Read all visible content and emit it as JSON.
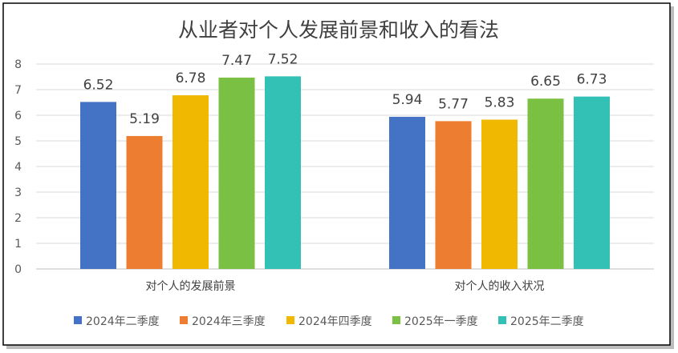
{
  "chart_data": {
    "type": "bar",
    "title": "从业者对个人发展前景和收入的看法",
    "categories": [
      "对个人的发展前景",
      "对个人的收入状况"
    ],
    "series": [
      {
        "name": "2024年二季度",
        "color": "#4472C4",
        "values": [
          6.52,
          5.94
        ]
      },
      {
        "name": "2024年三季度",
        "color": "#ED7D31",
        "values": [
          5.19,
          5.77
        ]
      },
      {
        "name": "2024年四季度",
        "color": "#F0B800",
        "values": [
          6.78,
          5.83
        ]
      },
      {
        "name": "2025年一季度",
        "color": "#7AC143",
        "values": [
          7.47,
          6.65
        ]
      },
      {
        "name": "2025年二季度",
        "color": "#33C1B5",
        "values": [
          7.52,
          6.73
        ]
      }
    ],
    "ylim": [
      0,
      8
    ],
    "yticks": [
      "0",
      "1",
      "2",
      "3",
      "4",
      "5",
      "6",
      "7",
      "8"
    ],
    "xlabel": "",
    "ylabel": "",
    "grid": true,
    "legend": "bottom",
    "data_labels": true
  }
}
